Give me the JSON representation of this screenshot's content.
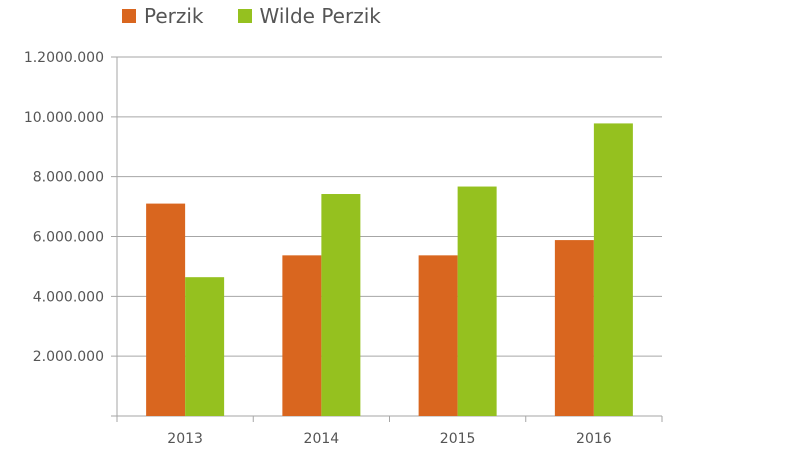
{
  "chart_data": {
    "type": "bar",
    "categories": [
      "2013",
      "2014",
      "2015",
      "2016"
    ],
    "series": [
      {
        "name": "Perzik",
        "color": "#d9661f",
        "values": [
          7100000,
          5370000,
          5370000,
          5880000
        ]
      },
      {
        "name": "Wilde Perzik",
        "color": "#95c11f",
        "values": [
          4640000,
          7420000,
          7670000,
          9780000
        ]
      }
    ],
    "yticks": [
      {
        "value": 2000000,
        "label": "2.000.000"
      },
      {
        "value": 4000000,
        "label": "4.000.000"
      },
      {
        "value": 6000000,
        "label": "6.000.000"
      },
      {
        "value": 8000000,
        "label": "8.000.000"
      },
      {
        "value": 10000000,
        "label": "10.000.000"
      },
      {
        "value": 12000000,
        "label": "1.2000.000"
      }
    ],
    "ylim": [
      0,
      12000000
    ],
    "grid": true,
    "legend_position": "top-left",
    "title": "",
    "xlabel": "",
    "ylabel": ""
  }
}
